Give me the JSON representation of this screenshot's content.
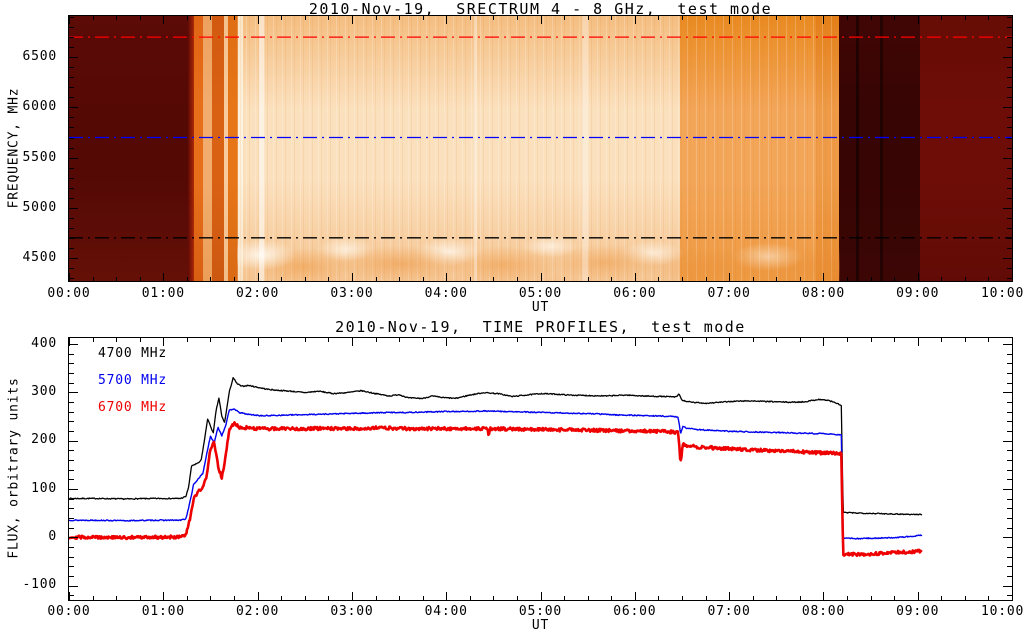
{
  "chart_data": [
    {
      "type": "heatmap",
      "title": "2010-Nov-19,  SRECTRUM 4 - 8 GHz,  test mode",
      "xlabel": "UT",
      "ylabel": "FREQUENCY, MHz",
      "x_range_hours": [
        0,
        10
      ],
      "x_tick_labels": [
        "00:00",
        "01:00",
        "02:00",
        "03:00",
        "04:00",
        "05:00",
        "06:00",
        "07:00",
        "08:00",
        "09:00",
        "10:00"
      ],
      "x_minor_step_hours": 0.25,
      "y_range_mhz": [
        4270,
        6910
      ],
      "y_tick_values": [
        4500,
        5000,
        5500,
        6000,
        6500
      ],
      "y_minor_step_mhz": 100,
      "grid": false,
      "colormap": "dark-maroon through orange to near-white",
      "marker_lines": [
        {
          "freq_mhz": 6700,
          "color": "#ff0000",
          "style": "dash-dot"
        },
        {
          "freq_mhz": 5700,
          "color": "#0000ff",
          "style": "dash-dot"
        },
        {
          "freq_mhz": 4700,
          "color": "#000000",
          "style": "dash-dot"
        }
      ],
      "segments": [
        {
          "t0": 0.0,
          "t1": 1.26,
          "v": [
            "#5c0b06",
            "#550905",
            "#641007"
          ]
        },
        {
          "t0": 1.26,
          "t1": 1.33,
          "h": [
            "#600a05",
            "#b92f07"
          ]
        },
        {
          "t0": 1.33,
          "t1": 1.42,
          "v": [
            "#e06414",
            "#e86f1a",
            "#d85f12"
          ]
        },
        {
          "t0": 1.42,
          "t1": 1.52,
          "v": [
            "#eda05e",
            "#f2ad6e",
            "#eb9e58"
          ]
        },
        {
          "t0": 1.52,
          "t1": 1.64,
          "v": [
            "#d25a10",
            "#d96114",
            "#cc5810"
          ]
        },
        {
          "t0": 1.64,
          "t1": 1.69,
          "v": [
            "#f3c08a",
            "#f7cb9e",
            "#f2bd86"
          ]
        },
        {
          "t0": 1.69,
          "t1": 1.79,
          "v": [
            "#df6d14",
            "#e67617",
            "#da6a14"
          ]
        },
        {
          "t0": 1.79,
          "t1": 1.85,
          "v": [
            "#fae6c8",
            "#fdf2de",
            "#f9e2c2"
          ]
        },
        {
          "t0": 1.85,
          "t1": 6.48,
          "v": [
            "#f4bd80",
            "#fbe0bd",
            "#f5c490"
          ]
        },
        {
          "t0": 6.48,
          "t1": 7.92,
          "v": [
            "#e98a20",
            "#f3a558",
            "#ee9a42"
          ]
        },
        {
          "t0": 7.92,
          "t1": 8.17,
          "v": [
            "#e37f18",
            "#ee9a46",
            "#e98c30"
          ]
        },
        {
          "t0": 8.17,
          "t1": 9.02,
          "v": [
            "#400605",
            "#370504",
            "#3c0605"
          ]
        },
        {
          "t0": 9.02,
          "t1": 10.0,
          "v": [
            "#670c06",
            "#6e0d07",
            "#620b06"
          ]
        }
      ],
      "columns": [
        {
          "t0": 2.02,
          "t1": 2.07,
          "color": "rgba(255,255,255,0.55)"
        },
        {
          "t0": 4.29,
          "t1": 4.33,
          "color": "rgba(255,255,255,0.40)"
        },
        {
          "t0": 5.44,
          "t1": 5.5,
          "color": "rgba(255,255,255,0.35)"
        },
        {
          "t0": 8.35,
          "t1": 8.38,
          "color": "rgba(0,0,0,0.45)"
        },
        {
          "t0": 8.6,
          "t1": 8.63,
          "color": "rgba(0,0,0,0.40)"
        }
      ]
    },
    {
      "type": "line",
      "title": "2010-Nov-19,  TIME PROFILES,  test mode",
      "xlabel": "UT",
      "ylabel": "FLUX, orbitrary units",
      "x_range_hours": [
        0,
        10
      ],
      "x_tick_labels": [
        "00:00",
        "01:00",
        "02:00",
        "03:00",
        "04:00",
        "05:00",
        "06:00",
        "07:00",
        "08:00",
        "09:00",
        "10:00"
      ],
      "x_minor_step_hours": 0.25,
      "y_range": [
        -130,
        412
      ],
      "y_tick_values": [
        -100,
        0,
        100,
        200,
        300,
        400
      ],
      "y_minor_step": 20,
      "grid": false,
      "legend_position": "top-left-inside",
      "series": [
        {
          "name": "4700 MHz",
          "color": "#000000",
          "width": 1.3,
          "noise": 1.1,
          "seed": 7,
          "points": [
            [
              0,
              80
            ],
            [
              0.3,
              80
            ],
            [
              0.6,
              79
            ],
            [
              0.9,
              80
            ],
            [
              1.18,
              80
            ],
            [
              1.24,
              84
            ],
            [
              1.27,
              105
            ],
            [
              1.3,
              148
            ],
            [
              1.36,
              152
            ],
            [
              1.4,
              158
            ],
            [
              1.44,
              205
            ],
            [
              1.47,
              245
            ],
            [
              1.5,
              230
            ],
            [
              1.53,
              215
            ],
            [
              1.56,
              262
            ],
            [
              1.59,
              288
            ],
            [
              1.62,
              250
            ],
            [
              1.65,
              237
            ],
            [
              1.7,
              300
            ],
            [
              1.74,
              330
            ],
            [
              1.78,
              318
            ],
            [
              1.83,
              312
            ],
            [
              1.9,
              314
            ],
            [
              2,
              310
            ],
            [
              2.1,
              306
            ],
            [
              2.2,
              304
            ],
            [
              2.35,
              302
            ],
            [
              2.5,
              299
            ],
            [
              2.65,
              302
            ],
            [
              2.8,
              297
            ],
            [
              2.95,
              299
            ],
            [
              3.1,
              303
            ],
            [
              3.25,
              297
            ],
            [
              3.4,
              292
            ],
            [
              3.5,
              295
            ],
            [
              3.6,
              288
            ],
            [
              3.75,
              287
            ],
            [
              3.85,
              292
            ],
            [
              3.95,
              289
            ],
            [
              4.1,
              287
            ],
            [
              4.25,
              294
            ],
            [
              4.4,
              299
            ],
            [
              4.55,
              297
            ],
            [
              4.7,
              291
            ],
            [
              4.85,
              294
            ],
            [
              5,
              297
            ],
            [
              5.15,
              296
            ],
            [
              5.3,
              294
            ],
            [
              5.5,
              293
            ],
            [
              5.7,
              292
            ],
            [
              5.9,
              294
            ],
            [
              6.1,
              292
            ],
            [
              6.3,
              291
            ],
            [
              6.44,
              290
            ],
            [
              6.47,
              296
            ],
            [
              6.5,
              283
            ],
            [
              6.6,
              279
            ],
            [
              6.75,
              277
            ],
            [
              6.9,
              279
            ],
            [
              7.05,
              281
            ],
            [
              7.2,
              282
            ],
            [
              7.35,
              281
            ],
            [
              7.5,
              280
            ],
            [
              7.65,
              279
            ],
            [
              7.8,
              280
            ],
            [
              7.95,
              285
            ],
            [
              8.05,
              283
            ],
            [
              8.13,
              278
            ],
            [
              8.19,
              272
            ],
            [
              8.21,
              51
            ],
            [
              8.35,
              50
            ],
            [
              8.55,
              49
            ],
            [
              8.75,
              48
            ],
            [
              8.95,
              47
            ],
            [
              9.05,
              47
            ]
          ]
        },
        {
          "name": "5700 MHz",
          "color": "#0000ee",
          "width": 1.4,
          "noise": 1.1,
          "seed": 13,
          "points": [
            [
              0,
              35
            ],
            [
              0.3,
              35
            ],
            [
              0.6,
              34
            ],
            [
              0.9,
              35
            ],
            [
              1.18,
              35
            ],
            [
              1.24,
              38
            ],
            [
              1.28,
              70
            ],
            [
              1.32,
              108
            ],
            [
              1.38,
              123
            ],
            [
              1.42,
              132
            ],
            [
              1.46,
              172
            ],
            [
              1.5,
              208
            ],
            [
              1.54,
              195
            ],
            [
              1.58,
              228
            ],
            [
              1.62,
              210
            ],
            [
              1.66,
              230
            ],
            [
              1.7,
              262
            ],
            [
              1.75,
              266
            ],
            [
              1.8,
              258
            ],
            [
              1.9,
              254
            ],
            [
              2.05,
              251
            ],
            [
              2.2,
              252
            ],
            [
              2.4,
              253
            ],
            [
              2.6,
              254
            ],
            [
              2.8,
              255
            ],
            [
              3,
              256
            ],
            [
              3.2,
              257
            ],
            [
              3.4,
              258
            ],
            [
              3.6,
              258
            ],
            [
              3.8,
              259
            ],
            [
              4,
              260
            ],
            [
              4.2,
              260
            ],
            [
              4.4,
              261
            ],
            [
              4.6,
              260
            ],
            [
              4.8,
              259
            ],
            [
              5,
              258
            ],
            [
              5.2,
              257
            ],
            [
              5.4,
              256
            ],
            [
              5.6,
              255
            ],
            [
              5.8,
              253
            ],
            [
              6,
              252
            ],
            [
              6.2,
              251
            ],
            [
              6.35,
              250
            ],
            [
              6.46,
              249
            ],
            [
              6.485,
              213
            ],
            [
              6.51,
              230
            ],
            [
              6.54,
              226
            ],
            [
              6.65,
              223
            ],
            [
              6.8,
              221
            ],
            [
              7,
              219
            ],
            [
              7.2,
              218
            ],
            [
              7.4,
              217
            ],
            [
              7.6,
              216
            ],
            [
              7.8,
              215
            ],
            [
              8,
              214
            ],
            [
              8.1,
              213
            ],
            [
              8.19,
              211
            ],
            [
              8.21,
              -2
            ],
            [
              8.35,
              -3
            ],
            [
              8.55,
              -2
            ],
            [
              8.75,
              -1
            ],
            [
              8.95,
              2
            ],
            [
              9.05,
              4
            ]
          ]
        },
        {
          "name": "6700 MHz",
          "color": "#ee0000",
          "width": 2.6,
          "noise": 3.2,
          "seed": 29,
          "points": [
            [
              0,
              0
            ],
            [
              0.3,
              0
            ],
            [
              0.6,
              -1
            ],
            [
              0.9,
              0
            ],
            [
              1.18,
              0
            ],
            [
              1.24,
              4
            ],
            [
              1.28,
              35
            ],
            [
              1.32,
              78
            ],
            [
              1.38,
              96
            ],
            [
              1.42,
              101
            ],
            [
              1.46,
              128
            ],
            [
              1.5,
              183
            ],
            [
              1.54,
              196
            ],
            [
              1.58,
              148
            ],
            [
              1.62,
              122
            ],
            [
              1.66,
              165
            ],
            [
              1.7,
              222
            ],
            [
              1.75,
              236
            ],
            [
              1.8,
              228
            ],
            [
              1.9,
              226
            ],
            [
              2.1,
              224
            ],
            [
              2.3,
              225
            ],
            [
              2.5,
              224
            ],
            [
              2.7,
              225
            ],
            [
              2.9,
              224
            ],
            [
              3.1,
              225
            ],
            [
              3.3,
              226
            ],
            [
              3.5,
              225
            ],
            [
              3.7,
              224
            ],
            [
              3.9,
              225
            ],
            [
              4.1,
              224
            ],
            [
              4.3,
              225
            ],
            [
              4.44,
              224
            ],
            [
              4.45,
              207
            ],
            [
              4.46,
              224
            ],
            [
              4.6,
              224
            ],
            [
              4.8,
              223
            ],
            [
              5,
              223
            ],
            [
              5.2,
              222
            ],
            [
              5.4,
              222
            ],
            [
              5.6,
              221
            ],
            [
              5.8,
              220
            ],
            [
              6,
              220
            ],
            [
              6.2,
              219
            ],
            [
              6.35,
              218
            ],
            [
              6.46,
              217
            ],
            [
              6.485,
              152
            ],
            [
              6.51,
              192
            ],
            [
              6.55,
              189
            ],
            [
              6.7,
              186
            ],
            [
              6.9,
              184
            ],
            [
              7.1,
              182
            ],
            [
              7.3,
              180
            ],
            [
              7.5,
              178
            ],
            [
              7.7,
              177
            ],
            [
              7.9,
              175
            ],
            [
              8.1,
              174
            ],
            [
              8.19,
              172
            ],
            [
              8.21,
              -35
            ],
            [
              8.35,
              -36
            ],
            [
              8.55,
              -34
            ],
            [
              8.75,
              -32
            ],
            [
              8.95,
              -30
            ],
            [
              9.05,
              -29
            ]
          ]
        }
      ]
    }
  ]
}
